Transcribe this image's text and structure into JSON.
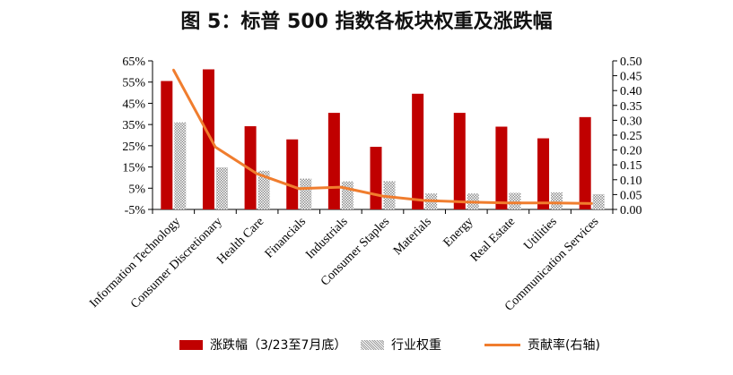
{
  "title": "图 5：标普 500 指数各板块权重及涨跌幅",
  "legend": {
    "bar": "涨跌幅（3/23至7月底）",
    "weight": "行业权重",
    "line": "贡献率(右轴)"
  },
  "colors": {
    "bar": "#c00000",
    "weight": "#9c9c9c",
    "line": "#f07d2e"
  },
  "chart_data": {
    "type": "bar",
    "categories": [
      "Information Technology",
      "Consumer Discretionary",
      "Health Care",
      "Financials",
      "Industrials",
      "Consumer Staples",
      "Materials",
      "Energy",
      "Real Estate",
      "Utilities",
      "Communication Services"
    ],
    "series": [
      {
        "name": "涨跌幅（3/23至7月底）",
        "axis": "left",
        "kind": "bar",
        "values": [
          55.5,
          61,
          34.2,
          28,
          40.5,
          24.5,
          49.5,
          40.5,
          34,
          28.5,
          38.5
        ]
      },
      {
        "name": "行业权重",
        "axis": "left",
        "kind": "bar-hatched",
        "values": [
          36,
          14.8,
          13.2,
          9.5,
          8.2,
          8.3,
          2.5,
          2.5,
          2.8,
          3,
          2.2
        ]
      },
      {
        "name": "贡献率(右轴)",
        "axis": "right",
        "kind": "line",
        "values": [
          0.47,
          0.21,
          0.12,
          0.07,
          0.075,
          0.045,
          0.03,
          0.025,
          0.022,
          0.022,
          0.02
        ]
      }
    ],
    "y_left": {
      "ticks": [
        "65%",
        "55%",
        "45%",
        "35%",
        "25%",
        "15%",
        "5%",
        "-5%"
      ],
      "ylim": [
        -5,
        65
      ]
    },
    "y_right": {
      "ticks": [
        "0.50",
        "0.45",
        "0.40",
        "0.35",
        "0.30",
        "0.25",
        "0.20",
        "0.15",
        "0.10",
        "0.05",
        "0.00"
      ],
      "ylim": [
        0,
        0.5
      ]
    },
    "grid": false,
    "legend_position": "bottom"
  }
}
